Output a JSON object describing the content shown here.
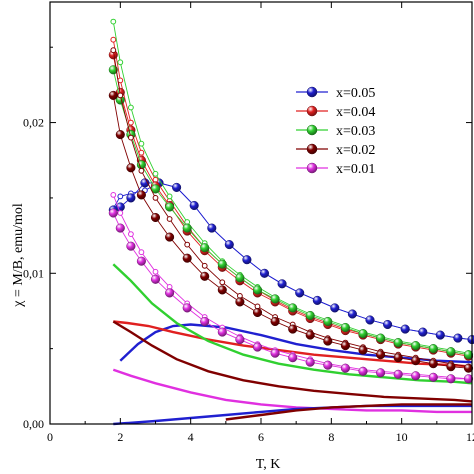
{
  "chart_data": {
    "type": "line",
    "title": "",
    "xlabel": "T, K",
    "ylabel": "χ = M/B, emu/mol",
    "xlim": [
      0,
      12
    ],
    "ylim": [
      0,
      0.028
    ],
    "xticks": [
      0,
      2,
      4,
      6,
      8,
      10,
      12
    ],
    "xtick_labels": [
      "0",
      "2",
      "4",
      "6",
      "8",
      "10",
      "12"
    ],
    "yticks": [
      0,
      0.01,
      0.02
    ],
    "ytick_labels": [
      "0,00",
      "0,01",
      "0,02"
    ],
    "grid": false,
    "legend_position": "right",
    "series": [
      {
        "name": "x=0.05",
        "color": "#2020d0",
        "x": [
          1.8,
          2.0,
          2.3,
          2.7,
          3.1,
          3.6,
          4.1,
          4.6,
          5.1,
          5.6,
          6.1,
          6.6,
          7.1,
          7.6,
          8.1,
          8.6,
          9.1,
          9.6,
          10.1,
          10.6,
          11.1,
          11.6,
          12.0
        ],
        "y": [
          0.0142,
          0.0144,
          0.015,
          0.016,
          0.016,
          0.0157,
          0.0145,
          0.013,
          0.0119,
          0.0109,
          0.01,
          0.0093,
          0.0087,
          0.0082,
          0.0077,
          0.0073,
          0.0069,
          0.0066,
          0.0063,
          0.0061,
          0.0059,
          0.0057,
          0.0056
        ],
        "fc_y": [
          0.0143,
          0.0151,
          0.0153,
          0.0155,
          0.016,
          0.0157,
          0.0145,
          0.013,
          0.0119,
          0.0109,
          0.01,
          0.0093,
          0.0087,
          0.0082,
          0.0077,
          0.0073,
          0.0069,
          0.0066,
          0.0063,
          0.0061,
          0.0059,
          0.0057,
          0.0056
        ]
      },
      {
        "name": "x=0.04",
        "color": "#e02020",
        "x": [
          1.8,
          2.0,
          2.3,
          2.6,
          3.0,
          3.4,
          3.9,
          4.4,
          4.9,
          5.4,
          5.9,
          6.4,
          6.9,
          7.4,
          7.9,
          8.4,
          8.9,
          9.4,
          9.9,
          10.4,
          10.9,
          11.4,
          11.9
        ],
        "y": [
          0.0245,
          0.022,
          0.0195,
          0.0175,
          0.0158,
          0.0145,
          0.0128,
          0.0115,
          0.0104,
          0.0095,
          0.0087,
          0.0081,
          0.0075,
          0.007,
          0.0066,
          0.0062,
          0.0059,
          0.0056,
          0.0053,
          0.0051,
          0.0049,
          0.0047,
          0.0045
        ],
        "fc_y": [
          0.0255,
          0.0228,
          0.02,
          0.018,
          0.0162,
          0.0148,
          0.0131,
          0.0117,
          0.0106,
          0.0097,
          0.0089,
          0.0082,
          0.0076,
          0.0071,
          0.0067,
          0.0063,
          0.006,
          0.0057,
          0.0054,
          0.0052,
          0.005,
          0.0048,
          0.0046
        ]
      },
      {
        "name": "x=0.03",
        "color": "#30d030",
        "x": [
          1.8,
          2.0,
          2.3,
          2.6,
          3.0,
          3.4,
          3.9,
          4.4,
          4.9,
          5.4,
          5.9,
          6.4,
          6.9,
          7.4,
          7.9,
          8.4,
          8.9,
          9.4,
          9.9,
          10.4,
          10.9,
          11.4,
          11.9
        ],
        "y": [
          0.0235,
          0.0215,
          0.0192,
          0.0172,
          0.0156,
          0.0144,
          0.013,
          0.0117,
          0.0106,
          0.0097,
          0.0089,
          0.0083,
          0.0077,
          0.0072,
          0.0068,
          0.0064,
          0.006,
          0.0057,
          0.0054,
          0.0052,
          0.005,
          0.0048,
          0.0046
        ],
        "fc_y": [
          0.0267,
          0.024,
          0.021,
          0.0186,
          0.0166,
          0.0151,
          0.0134,
          0.012,
          0.0108,
          0.0099,
          0.0091,
          0.0084,
          0.0078,
          0.0073,
          0.0069,
          0.0065,
          0.0061,
          0.0058,
          0.0055,
          0.0053,
          0.0051,
          0.0049,
          0.0047
        ]
      },
      {
        "name": "x=0.02",
        "color": "#800000",
        "x": [
          1.8,
          2.0,
          2.3,
          2.6,
          3.0,
          3.4,
          3.9,
          4.4,
          4.9,
          5.4,
          5.9,
          6.4,
          6.9,
          7.4,
          7.9,
          8.4,
          8.9,
          9.4,
          9.9,
          10.4,
          10.9,
          11.4,
          11.9
        ],
        "y": [
          0.0218,
          0.0192,
          0.017,
          0.0152,
          0.0137,
          0.0124,
          0.011,
          0.0098,
          0.0089,
          0.0081,
          0.0074,
          0.0068,
          0.0063,
          0.0059,
          0.0055,
          0.0052,
          0.0049,
          0.0046,
          0.0044,
          0.0042,
          0.004,
          0.0038,
          0.0037
        ],
        "fc_y": [
          0.0248,
          0.0218,
          0.019,
          0.0168,
          0.015,
          0.0136,
          0.0119,
          0.0105,
          0.0094,
          0.0085,
          0.0078,
          0.0071,
          0.0066,
          0.0061,
          0.0057,
          0.0054,
          0.0051,
          0.0048,
          0.0046,
          0.0044,
          0.0042,
          0.004,
          0.0038
        ]
      },
      {
        "name": "x=0.01",
        "color": "#e030e0",
        "x": [
          1.8,
          2.0,
          2.3,
          2.6,
          3.0,
          3.4,
          3.9,
          4.4,
          4.9,
          5.4,
          5.9,
          6.4,
          6.9,
          7.4,
          7.9,
          8.4,
          8.9,
          9.4,
          9.9,
          10.4,
          10.9,
          11.4,
          11.9
        ],
        "y": [
          0.014,
          0.013,
          0.0118,
          0.0108,
          0.0096,
          0.0087,
          0.0077,
          0.0068,
          0.0061,
          0.0056,
          0.0051,
          0.0047,
          0.0044,
          0.0041,
          0.0039,
          0.0037,
          0.0035,
          0.0034,
          0.0033,
          0.0032,
          0.0031,
          0.003,
          0.003
        ],
        "fc_y": [
          0.0152,
          0.014,
          0.0126,
          0.0114,
          0.0101,
          0.0091,
          0.008,
          0.0071,
          0.0064,
          0.0058,
          0.0053,
          0.0049,
          0.0046,
          0.0043,
          0.004,
          0.0038,
          0.0036,
          0.0035,
          0.0034,
          0.0033,
          0.0032,
          0.0031,
          0.003
        ]
      }
    ],
    "curves": [
      {
        "color": "#2020d0",
        "x": [
          2.0,
          2.5,
          3.0,
          3.5,
          4.0,
          5.0,
          6.0,
          7.0,
          8.0,
          9.0,
          10.0,
          11.0,
          12.0
        ],
        "y": [
          0.0042,
          0.0053,
          0.0061,
          0.0065,
          0.0066,
          0.0064,
          0.0059,
          0.0053,
          0.0049,
          0.0046,
          0.0044,
          0.0042,
          0.0041
        ]
      },
      {
        "color": "#e02020",
        "x": [
          1.8,
          2.2,
          2.8,
          3.5,
          4.5,
          5.5,
          6.5,
          7.5,
          8.5,
          9.5,
          10.5,
          11.5,
          12.0
        ],
        "y": [
          0.0068,
          0.0067,
          0.0065,
          0.0061,
          0.0056,
          0.0052,
          0.0049,
          0.0046,
          0.0044,
          0.0042,
          0.004,
          0.0039,
          0.0038
        ]
      },
      {
        "color": "#30d030",
        "x": [
          1.8,
          2.3,
          2.9,
          3.6,
          4.5,
          5.5,
          6.5,
          7.5,
          8.5,
          9.5,
          10.5,
          11.5,
          12.0
        ],
        "y": [
          0.0106,
          0.0095,
          0.008,
          0.0067,
          0.0055,
          0.0046,
          0.004,
          0.0036,
          0.0033,
          0.0031,
          0.0029,
          0.0028,
          0.0027
        ]
      },
      {
        "color": "#800000",
        "x": [
          1.8,
          2.3,
          2.9,
          3.6,
          4.5,
          5.5,
          6.5,
          7.5,
          8.5,
          9.5,
          10.5,
          11.5,
          12.0
        ],
        "y": [
          0.0068,
          0.0061,
          0.0052,
          0.0043,
          0.0035,
          0.0029,
          0.0025,
          0.0022,
          0.002,
          0.0018,
          0.0017,
          0.0016,
          0.0015
        ]
      },
      {
        "color": "#e030e0",
        "x": [
          1.8,
          2.3,
          3.0,
          4.0,
          5.0,
          6.0,
          7.0,
          8.0,
          9.0,
          10.0,
          11.0,
          12.0
        ],
        "y": [
          0.0036,
          0.0032,
          0.0027,
          0.0021,
          0.0016,
          0.0013,
          0.0011,
          0.001,
          0.0009,
          0.0009,
          0.0008,
          0.0008
        ]
      },
      {
        "color": "#2020d0",
        "x": [
          1.8,
          3.0,
          4.0,
          5.0,
          6.0,
          7.0,
          8.0,
          9.0,
          10.0,
          11.0,
          12.0
        ],
        "y": [
          0.0,
          0.0002,
          0.0004,
          0.0006,
          0.0008,
          0.001,
          0.0011,
          0.0012,
          0.0012,
          0.0012,
          0.0012
        ]
      },
      {
        "color": "#800000",
        "x": [
          5.0,
          6.0,
          7.0,
          8.0,
          9.0,
          10.0,
          11.0,
          12.0
        ],
        "y": [
          0.0003,
          0.0006,
          0.0009,
          0.0011,
          0.0012,
          0.0013,
          0.0013,
          0.0013
        ]
      }
    ]
  }
}
